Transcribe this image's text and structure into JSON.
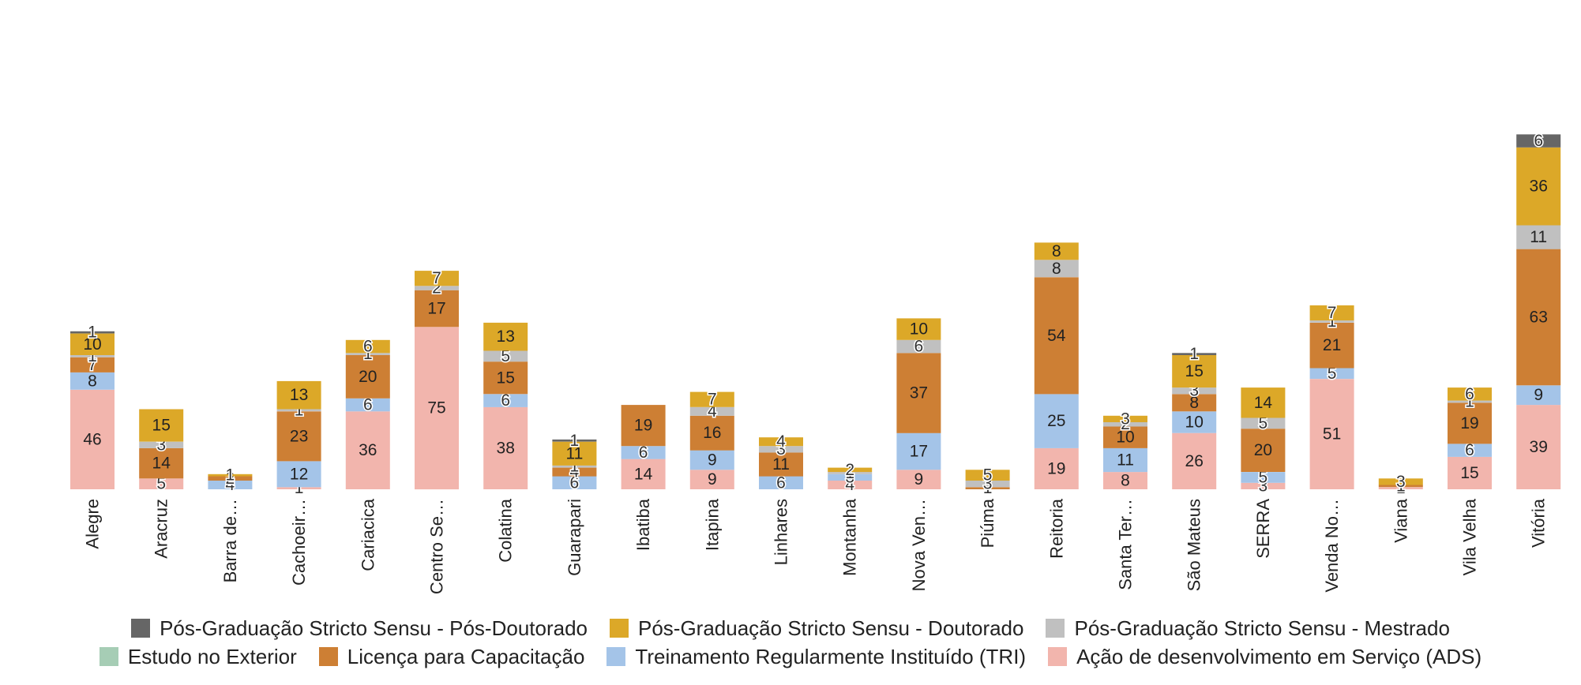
{
  "chart_data": {
    "type": "bar",
    "stacked": true,
    "categories": [
      "Alegre",
      "Aracruz",
      "Barra de…",
      "Cachoeir…",
      "Cariacica",
      "Centro Se…",
      "Colatina",
      "Guarapari",
      "Ibatiba",
      "Itapina",
      "Linhares",
      "Montanha",
      "Nova Ven…",
      "Piúma",
      "Reitoria",
      "Santa Ter…",
      "São Mateus",
      "SERRA",
      "Venda No…",
      "Viana",
      "Vila Velha",
      "Vitória"
    ],
    "series": [
      {
        "name": "Ação de desenvolvimento em Serviço (ADS)",
        "color": "#f2b5ad",
        "values": [
          46,
          5,
          0,
          1,
          36,
          75,
          38,
          0,
          14,
          9,
          0,
          4,
          9,
          0,
          19,
          8,
          26,
          3,
          51,
          1,
          15,
          39
        ]
      },
      {
        "name": "Treinamento Regularmente Instituído (TRI)",
        "color": "#a4c4e8",
        "values": [
          8,
          0,
          4,
          12,
          6,
          0,
          6,
          6,
          6,
          9,
          6,
          3,
          17,
          0,
          25,
          11,
          10,
          5,
          5,
          0,
          6,
          9
        ]
      },
      {
        "name": "Estudo no Exterior",
        "color": "#a6cdb5",
        "values": [
          0,
          0,
          0,
          0,
          0,
          0,
          0,
          0,
          0,
          0,
          0,
          0,
          0,
          0,
          0,
          0,
          0,
          0,
          0,
          0,
          0,
          0
        ]
      },
      {
        "name": "Licença para Capacitação",
        "color": "#cd7f34",
        "values": [
          7,
          14,
          2,
          23,
          20,
          17,
          15,
          4,
          19,
          16,
          11,
          0,
          37,
          1,
          54,
          10,
          8,
          20,
          21,
          1,
          19,
          63
        ]
      },
      {
        "name": "Pós-Graduação Stricto Sensu - Mestrado",
        "color": "#c0c0c0",
        "values": [
          1,
          3,
          0,
          1,
          1,
          2,
          5,
          1,
          0,
          4,
          3,
          1,
          6,
          3,
          8,
          2,
          3,
          5,
          1,
          0,
          1,
          11
        ]
      },
      {
        "name": "Pós-Graduação Stricto Sensu - Doutorado",
        "color": "#dca828",
        "values": [
          10,
          15,
          1,
          13,
          6,
          7,
          13,
          11,
          0,
          7,
          4,
          2,
          10,
          5,
          8,
          3,
          15,
          14,
          7,
          3,
          6,
          36
        ]
      },
      {
        "name": "Pós-Graduação Stricto Sensu - Pós-Doutorado",
        "color": "#666666",
        "values": [
          1,
          0,
          0,
          0,
          0,
          0,
          0,
          1,
          0,
          0,
          0,
          0,
          0,
          0,
          0,
          0,
          1,
          0,
          0,
          0,
          0,
          6
        ]
      }
    ],
    "ylim": [
      0,
      190
    ],
    "grid": false,
    "legend_position": "bottom"
  }
}
